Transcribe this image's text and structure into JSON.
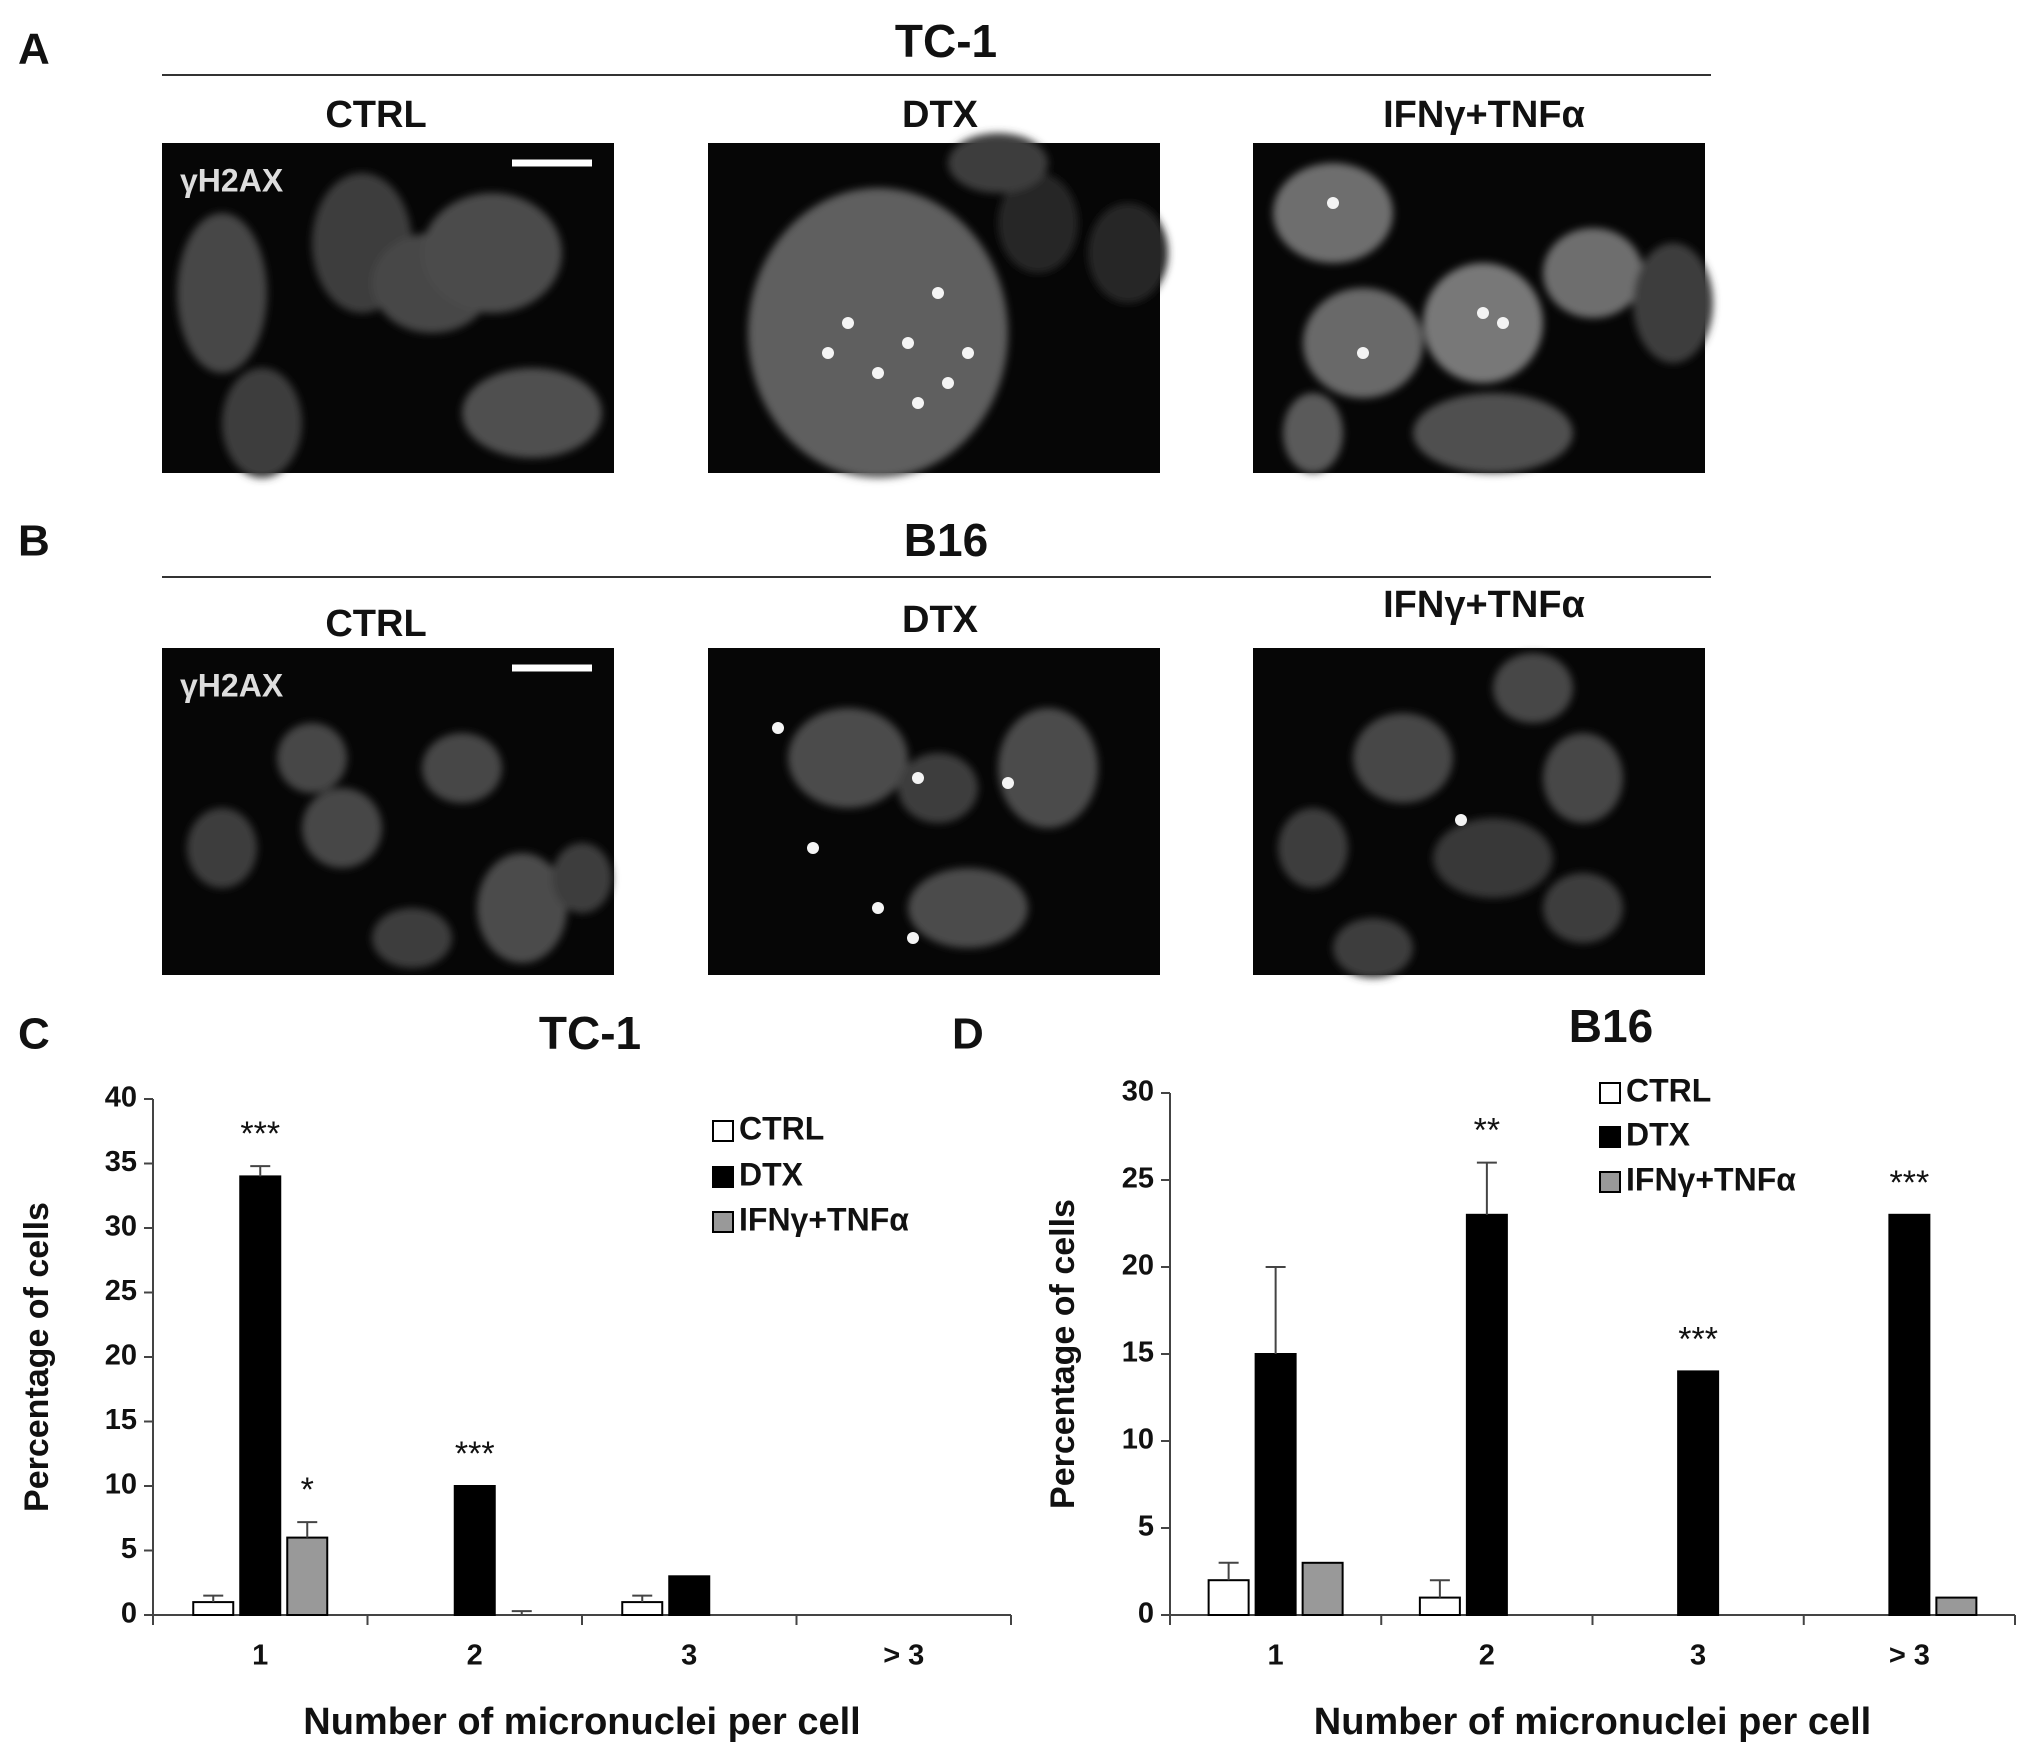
{
  "image_rows": [
    {
      "label": "A",
      "title": "TC-1",
      "columns": [
        "CTRL",
        "DTX",
        "IFNγ+TNFα"
      ],
      "stain": "γH2AX"
    },
    {
      "label": "B",
      "title": "B16",
      "columns": [
        "CTRL",
        "DTX",
        "IFNγ+TNFα"
      ],
      "stain": "γH2AX"
    }
  ],
  "chart_data": [
    {
      "type": "bar",
      "panel_label": "C",
      "title": "TC-1",
      "x_label": "Number of micronuclei per cell",
      "y_label": "Percentage of cells",
      "categories": [
        "1",
        "2",
        "3",
        "> 3"
      ],
      "series": [
        {
          "name": "CTRL",
          "color": "#ffffff",
          "values": [
            1,
            0,
            1,
            0
          ],
          "errors": [
            0.5,
            0,
            0.5,
            0
          ],
          "annotations": [
            null,
            null,
            null,
            null
          ]
        },
        {
          "name": "DTX",
          "color": "#000000",
          "values": [
            34,
            10,
            3,
            0
          ],
          "errors": [
            0.8,
            0,
            0,
            0
          ],
          "annotations": [
            "***",
            "***",
            null,
            null
          ]
        },
        {
          "name": "IFNγ+TNFα",
          "color": "#999999",
          "values": [
            6,
            0,
            0,
            0
          ],
          "errors": [
            1.2,
            0.3,
            0,
            0
          ],
          "annotations": [
            "*",
            null,
            null,
            null
          ]
        }
      ],
      "ylim": [
        0,
        40
      ],
      "yticks": [
        0,
        5,
        10,
        15,
        20,
        25,
        30,
        35,
        40
      ],
      "grid": false,
      "legend": "upper right"
    },
    {
      "type": "bar",
      "panel_label": "D",
      "title": "B16",
      "x_label": "Number of micronuclei per cell",
      "y_label": "Percentage of cells",
      "categories": [
        "1",
        "2",
        "3",
        "> 3"
      ],
      "series": [
        {
          "name": "CTRL",
          "color": "#ffffff",
          "values": [
            2,
            1,
            0,
            0
          ],
          "errors": [
            1,
            1,
            0,
            0
          ],
          "annotations": [
            null,
            null,
            null,
            null
          ]
        },
        {
          "name": "DTX",
          "color": "#000000",
          "values": [
            15,
            23,
            14,
            23
          ],
          "errors": [
            5,
            3,
            0,
            0
          ],
          "annotations": [
            null,
            "**",
            "***",
            "***"
          ]
        },
        {
          "name": "IFNγ+TNFα",
          "color": "#999999",
          "values": [
            3,
            0,
            0,
            1
          ],
          "errors": [
            0,
            0,
            0,
            0
          ],
          "annotations": [
            null,
            null,
            null,
            null
          ]
        }
      ],
      "ylim": [
        0,
        30
      ],
      "yticks": [
        0,
        5,
        10,
        15,
        20,
        25,
        30
      ],
      "grid": false,
      "legend": "upper center"
    }
  ]
}
